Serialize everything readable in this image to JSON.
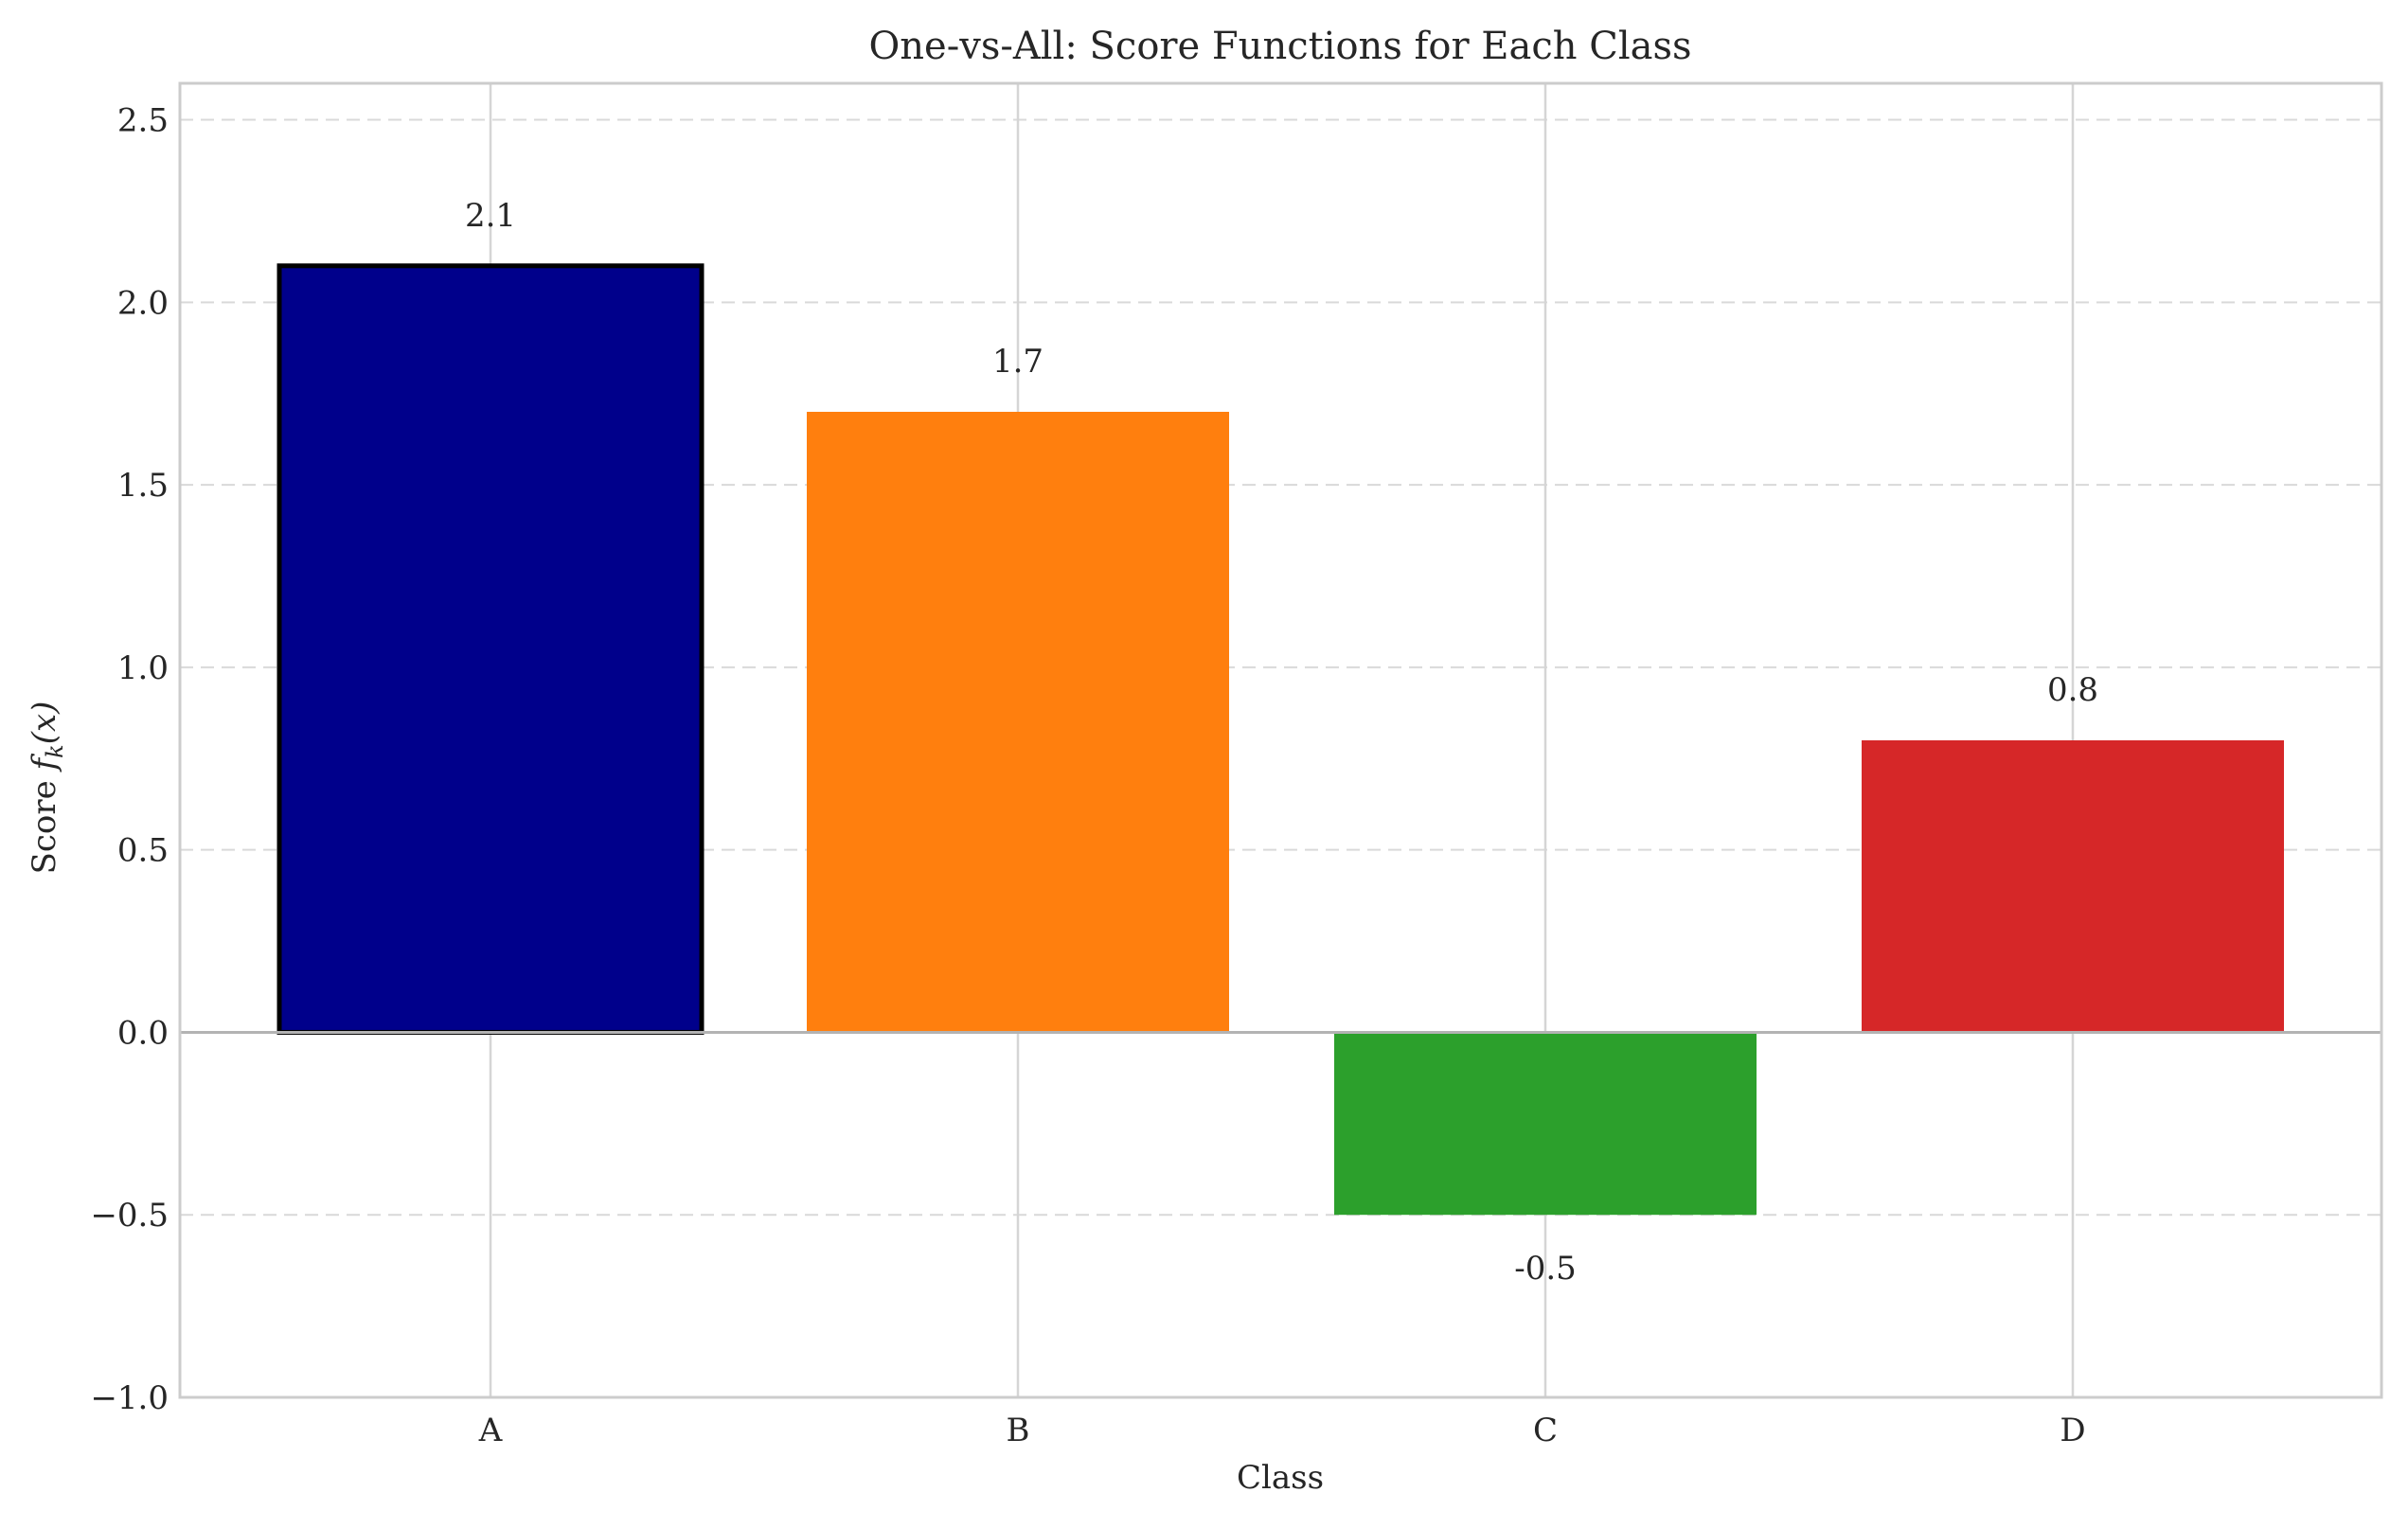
{
  "chart_data": {
    "type": "bar",
    "title": "One-vs-All: Score Functions for Each Class",
    "xlabel": "Class",
    "ylabel": {
      "prefix": "Score ",
      "func": "f",
      "subscript": "k",
      "arg": "(x)"
    },
    "categories": [
      "A",
      "B",
      "C",
      "D"
    ],
    "values": [
      2.1,
      1.7,
      -0.5,
      0.8
    ],
    "data_labels": [
      "2.1",
      "1.7",
      "-0.5",
      "0.8"
    ],
    "colors": [
      "#00008b",
      "#ff7f0e",
      "#2ca02c",
      "#d62728"
    ],
    "highlight_index": 0,
    "highlight_edge_color": "#000000",
    "ylim": [
      -1.0,
      2.6
    ],
    "yticks": [
      -1.0,
      -0.5,
      0.0,
      0.5,
      1.0,
      1.5,
      2.0,
      2.5
    ],
    "ytick_labels": [
      "−1.0",
      "−0.5",
      "0.0",
      "0.5",
      "1.0",
      "1.5",
      "2.0",
      "2.5"
    ],
    "grid": true,
    "baseline": 0
  }
}
